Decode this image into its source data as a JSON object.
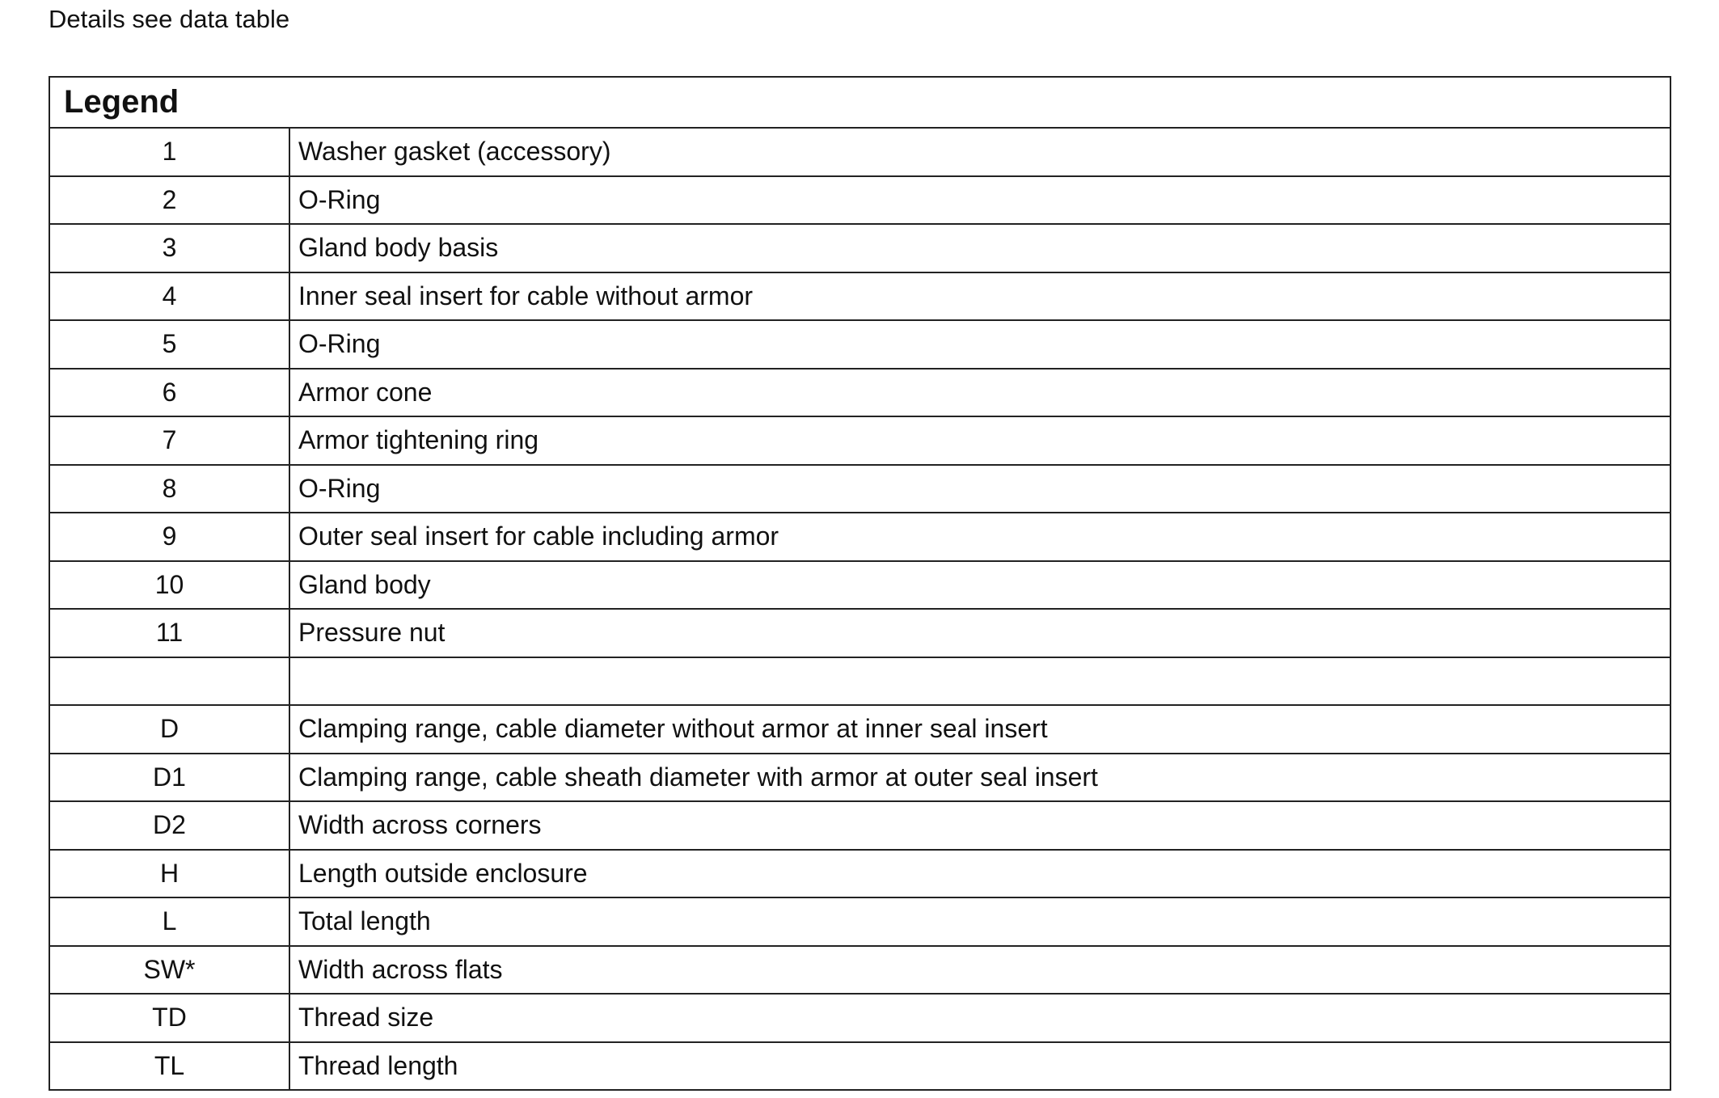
{
  "note": "Details see data table",
  "legend": {
    "title": "Legend",
    "rows": [
      {
        "key": "1",
        "desc": "Washer gasket (accessory)"
      },
      {
        "key": "2",
        "desc": "O-Ring"
      },
      {
        "key": "3",
        "desc": "Gland body basis"
      },
      {
        "key": "4",
        "desc": "Inner seal insert for cable without armor"
      },
      {
        "key": "5",
        "desc": "O-Ring"
      },
      {
        "key": "6",
        "desc": "Armor cone"
      },
      {
        "key": "7",
        "desc": "Armor tightening ring"
      },
      {
        "key": "8",
        "desc": "O-Ring"
      },
      {
        "key": "9",
        "desc": "Outer seal insert for cable including armor"
      },
      {
        "key": "10",
        "desc": "Gland body"
      },
      {
        "key": "11",
        "desc": "Pressure nut"
      },
      {
        "key": "",
        "desc": ""
      },
      {
        "key": "D",
        "desc": "Clamping range, cable diameter without armor at inner seal insert"
      },
      {
        "key": "D1",
        "desc": "Clamping range, cable sheath diameter with armor at outer seal insert"
      },
      {
        "key": "D2",
        "desc": "Width across corners"
      },
      {
        "key": "H",
        "desc": "Length outside enclosure"
      },
      {
        "key": "L",
        "desc": "Total length"
      },
      {
        "key": "SW*",
        "desc": "Width across flats"
      },
      {
        "key": "TD",
        "desc": "Thread size"
      },
      {
        "key": "TL",
        "desc": "Thread length"
      }
    ]
  }
}
